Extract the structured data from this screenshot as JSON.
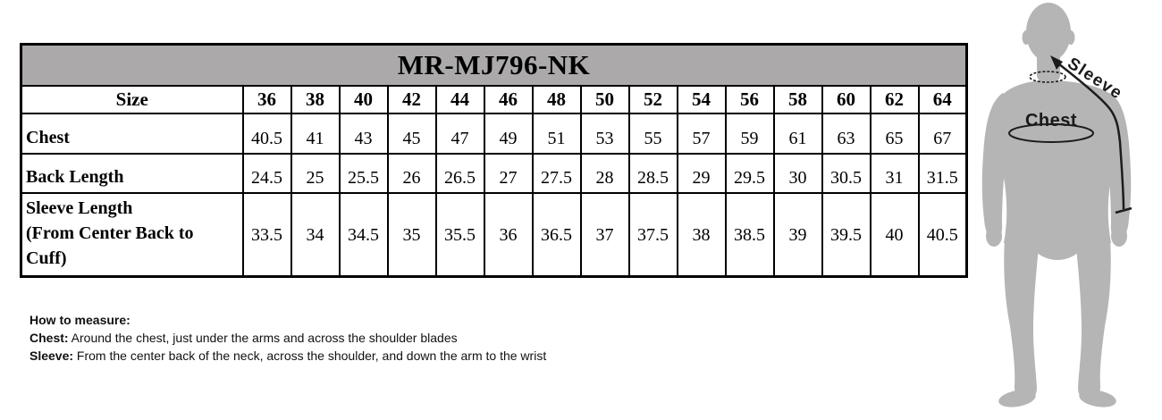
{
  "product_code": "MR-MJ796-NK",
  "size_table": {
    "header_bg": "#aba9a9",
    "size_label": "Size",
    "sizes": [
      "36",
      "38",
      "40",
      "42",
      "44",
      "46",
      "48",
      "50",
      "52",
      "54",
      "56",
      "58",
      "60",
      "62",
      "64"
    ],
    "rows": [
      {
        "label": "Chest",
        "values": [
          "40.5",
          "41",
          "43",
          "45",
          "47",
          "49",
          "51",
          "53",
          "55",
          "57",
          "59",
          "61",
          "63",
          "65",
          "67"
        ]
      },
      {
        "label": "Back Length",
        "values": [
          "24.5",
          "25",
          "25.5",
          "26",
          "26.5",
          "27",
          "27.5",
          "28",
          "28.5",
          "29",
          "29.5",
          "30",
          "30.5",
          "31",
          "31.5"
        ]
      },
      {
        "label": "Sleeve Length\n(From Center Back to\nCuff)",
        "values": [
          "33.5",
          "34",
          "34.5",
          "35",
          "35.5",
          "36",
          "36.5",
          "37",
          "37.5",
          "38",
          "38.5",
          "39",
          "39.5",
          "40",
          "40.5"
        ]
      }
    ]
  },
  "how_to_measure": {
    "title": "How to measure:",
    "items": [
      {
        "term": "Chest:",
        "description": " Around the chest, just under the arms and across the shoulder blades"
      },
      {
        "term": "Sleeve:",
        "description": " From the center back of the neck, across the shoulder, and down the arm to the wrist"
      }
    ]
  },
  "figure": {
    "sleeve_label": "Sleeve",
    "chest_label": "Chest",
    "silhouette_color": "#b5b5b5",
    "line_color": "#1c1c1c"
  }
}
